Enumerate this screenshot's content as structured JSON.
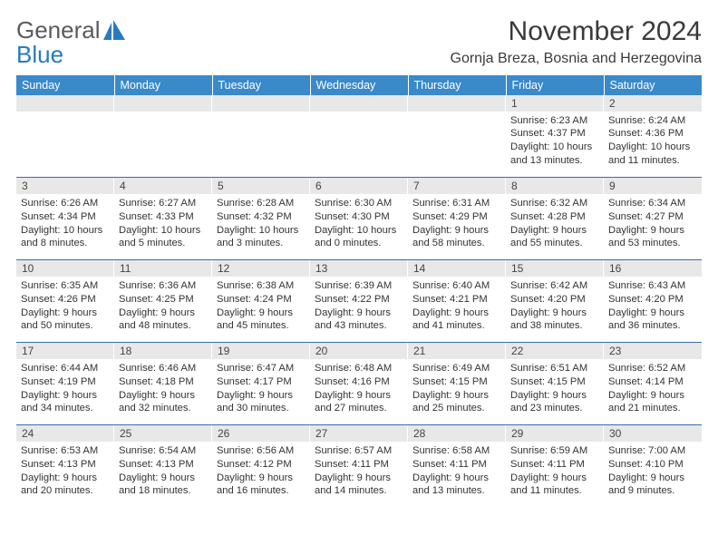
{
  "logo": {
    "line1": "General",
    "line2": "Blue"
  },
  "title": "November 2024",
  "location": "Gornja Breza, Bosnia and Herzegovina",
  "colors": {
    "header_bg": "#3a89c9",
    "header_fg": "#ffffff",
    "row_border": "#3a6ea5",
    "daynum_bg": "#e8e8e8",
    "text": "#333333",
    "logo_gray": "#5b5b5b",
    "logo_blue": "#2a7abf"
  },
  "weekdays": [
    "Sunday",
    "Monday",
    "Tuesday",
    "Wednesday",
    "Thursday",
    "Friday",
    "Saturday"
  ],
  "weeks": [
    [
      null,
      null,
      null,
      null,
      null,
      {
        "n": "1",
        "sunrise": "Sunrise: 6:23 AM",
        "sunset": "Sunset: 4:37 PM",
        "day1": "Daylight: 10 hours",
        "day2": "and 13 minutes."
      },
      {
        "n": "2",
        "sunrise": "Sunrise: 6:24 AM",
        "sunset": "Sunset: 4:36 PM",
        "day1": "Daylight: 10 hours",
        "day2": "and 11 minutes."
      }
    ],
    [
      {
        "n": "3",
        "sunrise": "Sunrise: 6:26 AM",
        "sunset": "Sunset: 4:34 PM",
        "day1": "Daylight: 10 hours",
        "day2": "and 8 minutes."
      },
      {
        "n": "4",
        "sunrise": "Sunrise: 6:27 AM",
        "sunset": "Sunset: 4:33 PM",
        "day1": "Daylight: 10 hours",
        "day2": "and 5 minutes."
      },
      {
        "n": "5",
        "sunrise": "Sunrise: 6:28 AM",
        "sunset": "Sunset: 4:32 PM",
        "day1": "Daylight: 10 hours",
        "day2": "and 3 minutes."
      },
      {
        "n": "6",
        "sunrise": "Sunrise: 6:30 AM",
        "sunset": "Sunset: 4:30 PM",
        "day1": "Daylight: 10 hours",
        "day2": "and 0 minutes."
      },
      {
        "n": "7",
        "sunrise": "Sunrise: 6:31 AM",
        "sunset": "Sunset: 4:29 PM",
        "day1": "Daylight: 9 hours",
        "day2": "and 58 minutes."
      },
      {
        "n": "8",
        "sunrise": "Sunrise: 6:32 AM",
        "sunset": "Sunset: 4:28 PM",
        "day1": "Daylight: 9 hours",
        "day2": "and 55 minutes."
      },
      {
        "n": "9",
        "sunrise": "Sunrise: 6:34 AM",
        "sunset": "Sunset: 4:27 PM",
        "day1": "Daylight: 9 hours",
        "day2": "and 53 minutes."
      }
    ],
    [
      {
        "n": "10",
        "sunrise": "Sunrise: 6:35 AM",
        "sunset": "Sunset: 4:26 PM",
        "day1": "Daylight: 9 hours",
        "day2": "and 50 minutes."
      },
      {
        "n": "11",
        "sunrise": "Sunrise: 6:36 AM",
        "sunset": "Sunset: 4:25 PM",
        "day1": "Daylight: 9 hours",
        "day2": "and 48 minutes."
      },
      {
        "n": "12",
        "sunrise": "Sunrise: 6:38 AM",
        "sunset": "Sunset: 4:24 PM",
        "day1": "Daylight: 9 hours",
        "day2": "and 45 minutes."
      },
      {
        "n": "13",
        "sunrise": "Sunrise: 6:39 AM",
        "sunset": "Sunset: 4:22 PM",
        "day1": "Daylight: 9 hours",
        "day2": "and 43 minutes."
      },
      {
        "n": "14",
        "sunrise": "Sunrise: 6:40 AM",
        "sunset": "Sunset: 4:21 PM",
        "day1": "Daylight: 9 hours",
        "day2": "and 41 minutes."
      },
      {
        "n": "15",
        "sunrise": "Sunrise: 6:42 AM",
        "sunset": "Sunset: 4:20 PM",
        "day1": "Daylight: 9 hours",
        "day2": "and 38 minutes."
      },
      {
        "n": "16",
        "sunrise": "Sunrise: 6:43 AM",
        "sunset": "Sunset: 4:20 PM",
        "day1": "Daylight: 9 hours",
        "day2": "and 36 minutes."
      }
    ],
    [
      {
        "n": "17",
        "sunrise": "Sunrise: 6:44 AM",
        "sunset": "Sunset: 4:19 PM",
        "day1": "Daylight: 9 hours",
        "day2": "and 34 minutes."
      },
      {
        "n": "18",
        "sunrise": "Sunrise: 6:46 AM",
        "sunset": "Sunset: 4:18 PM",
        "day1": "Daylight: 9 hours",
        "day2": "and 32 minutes."
      },
      {
        "n": "19",
        "sunrise": "Sunrise: 6:47 AM",
        "sunset": "Sunset: 4:17 PM",
        "day1": "Daylight: 9 hours",
        "day2": "and 30 minutes."
      },
      {
        "n": "20",
        "sunrise": "Sunrise: 6:48 AM",
        "sunset": "Sunset: 4:16 PM",
        "day1": "Daylight: 9 hours",
        "day2": "and 27 minutes."
      },
      {
        "n": "21",
        "sunrise": "Sunrise: 6:49 AM",
        "sunset": "Sunset: 4:15 PM",
        "day1": "Daylight: 9 hours",
        "day2": "and 25 minutes."
      },
      {
        "n": "22",
        "sunrise": "Sunrise: 6:51 AM",
        "sunset": "Sunset: 4:15 PM",
        "day1": "Daylight: 9 hours",
        "day2": "and 23 minutes."
      },
      {
        "n": "23",
        "sunrise": "Sunrise: 6:52 AM",
        "sunset": "Sunset: 4:14 PM",
        "day1": "Daylight: 9 hours",
        "day2": "and 21 minutes."
      }
    ],
    [
      {
        "n": "24",
        "sunrise": "Sunrise: 6:53 AM",
        "sunset": "Sunset: 4:13 PM",
        "day1": "Daylight: 9 hours",
        "day2": "and 20 minutes."
      },
      {
        "n": "25",
        "sunrise": "Sunrise: 6:54 AM",
        "sunset": "Sunset: 4:13 PM",
        "day1": "Daylight: 9 hours",
        "day2": "and 18 minutes."
      },
      {
        "n": "26",
        "sunrise": "Sunrise: 6:56 AM",
        "sunset": "Sunset: 4:12 PM",
        "day1": "Daylight: 9 hours",
        "day2": "and 16 minutes."
      },
      {
        "n": "27",
        "sunrise": "Sunrise: 6:57 AM",
        "sunset": "Sunset: 4:11 PM",
        "day1": "Daylight: 9 hours",
        "day2": "and 14 minutes."
      },
      {
        "n": "28",
        "sunrise": "Sunrise: 6:58 AM",
        "sunset": "Sunset: 4:11 PM",
        "day1": "Daylight: 9 hours",
        "day2": "and 13 minutes."
      },
      {
        "n": "29",
        "sunrise": "Sunrise: 6:59 AM",
        "sunset": "Sunset: 4:11 PM",
        "day1": "Daylight: 9 hours",
        "day2": "and 11 minutes."
      },
      {
        "n": "30",
        "sunrise": "Sunrise: 7:00 AM",
        "sunset": "Sunset: 4:10 PM",
        "day1": "Daylight: 9 hours",
        "day2": "and 9 minutes."
      }
    ]
  ]
}
